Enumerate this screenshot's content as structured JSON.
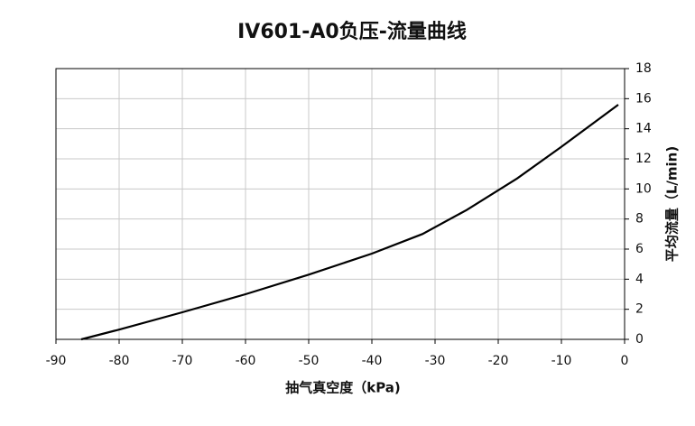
{
  "chart_data": {
    "type": "line",
    "title": "IV601-A0负压-流量曲线",
    "x_label": "抽气真空度（kPa)",
    "y_label": "平均流量（L/min)",
    "x": [
      -86,
      -80,
      -70,
      -60,
      -50,
      -40,
      -32,
      -25,
      -17,
      -10,
      -1
    ],
    "series": [
      {
        "name": "IV601-A0",
        "color": "#000000",
        "values": [
          0,
          0.65,
          1.8,
          3.0,
          4.3,
          5.7,
          7.0,
          8.6,
          10.7,
          12.8,
          15.6
        ]
      }
    ],
    "xlim": [
      -90,
      0
    ],
    "xticks": [
      -90,
      -80,
      -70,
      -60,
      -50,
      -40,
      -30,
      -20,
      -10,
      0
    ],
    "ylim": [
      0,
      18
    ],
    "yticks": [
      0,
      2,
      4,
      6,
      8,
      10,
      12,
      14,
      16,
      18
    ],
    "grid": true
  }
}
